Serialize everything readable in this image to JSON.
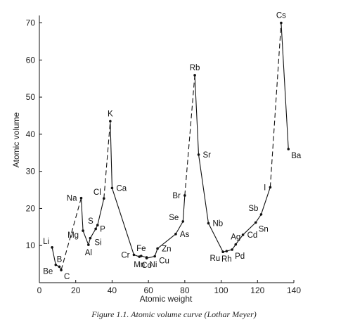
{
  "chart_data": {
    "type": "line",
    "title": "",
    "xlabel": "Atomic weight",
    "ylabel": "Atomic volume",
    "xlim": [
      0,
      140
    ],
    "ylim": [
      0,
      72
    ],
    "xticks": [
      0,
      20,
      40,
      60,
      80,
      100,
      120,
      140
    ],
    "yticks": [
      10,
      20,
      30,
      40,
      50,
      60,
      70
    ],
    "grid": false,
    "legend": "none",
    "line_color": "#111111",
    "points": [
      {
        "label": "Li",
        "x": 7,
        "y": 9.5,
        "label_pos": "above-left"
      },
      {
        "label": "Be",
        "x": 9,
        "y": 4.8,
        "label_pos": "below-left"
      },
      {
        "label": "B",
        "x": 11,
        "y": 4.3,
        "label_pos": "above"
      },
      {
        "label": "C",
        "x": 12,
        "y": 3.4,
        "label_pos": "below-right"
      },
      {
        "label": "Na",
        "x": 23,
        "y": 22.8,
        "label_pos": "left"
      },
      {
        "label": "Mg",
        "x": 24,
        "y": 14.0,
        "label_pos": "left-below"
      },
      {
        "label": "Al",
        "x": 27,
        "y": 10.2,
        "label_pos": "below"
      },
      {
        "label": "Si",
        "x": 28,
        "y": 12.0,
        "label_pos": "right-below"
      },
      {
        "label": "P",
        "x": 31,
        "y": 14.5,
        "label_pos": "right"
      },
      {
        "label": "S",
        "x": 32,
        "y": 15.5,
        "label_pos": "left-above"
      },
      {
        "label": "Cl",
        "x": 35.5,
        "y": 22.7,
        "label_pos": "above-left"
      },
      {
        "label": "K",
        "x": 39,
        "y": 43.5,
        "label_pos": "above"
      },
      {
        "label": "Ca",
        "x": 40,
        "y": 25.5,
        "label_pos": "right"
      },
      {
        "label": "Cr",
        "x": 52,
        "y": 7.5,
        "label_pos": "left"
      },
      {
        "label": "Mn",
        "x": 55,
        "y": 7.0,
        "label_pos": "below"
      },
      {
        "label": "Fe",
        "x": 56,
        "y": 7.2,
        "label_pos": "above"
      },
      {
        "label": "Co",
        "x": 59,
        "y": 6.8,
        "label_pos": "below"
      },
      {
        "label": "Ni",
        "x": 59,
        "y": 6.6,
        "label_pos": "below-right"
      },
      {
        "label": "Cu",
        "x": 63.5,
        "y": 7.1,
        "label_pos": "right-below"
      },
      {
        "label": "Zn",
        "x": 65,
        "y": 9.2,
        "label_pos": "right"
      },
      {
        "label": "As",
        "x": 75,
        "y": 13.1,
        "label_pos": "right"
      },
      {
        "label": "Se",
        "x": 79,
        "y": 16.5,
        "label_pos": "left-above"
      },
      {
        "label": "Br",
        "x": 80,
        "y": 23.5,
        "label_pos": "left"
      },
      {
        "label": "Rb",
        "x": 85.5,
        "y": 55.9,
        "label_pos": "above"
      },
      {
        "label": "Sr",
        "x": 87.6,
        "y": 34.5,
        "label_pos": "right"
      },
      {
        "label": "Nb",
        "x": 93,
        "y": 16.0,
        "label_pos": "right"
      },
      {
        "label": "Ru",
        "x": 101,
        "y": 8.3,
        "label_pos": "below-left"
      },
      {
        "label": "Rh",
        "x": 103,
        "y": 8.5,
        "label_pos": "below"
      },
      {
        "label": "Pd",
        "x": 106,
        "y": 8.9,
        "label_pos": "below-right"
      },
      {
        "label": "Ag",
        "x": 108,
        "y": 10.3,
        "label_pos": "above"
      },
      {
        "label": "Cd",
        "x": 112,
        "y": 12.9,
        "label_pos": "right"
      },
      {
        "label": "Sn",
        "x": 119,
        "y": 16.2,
        "label_pos": "below-right"
      },
      {
        "label": "Sb",
        "x": 122,
        "y": 18.4,
        "label_pos": "above-left"
      },
      {
        "label": "I",
        "x": 127,
        "y": 25.7,
        "label_pos": "left"
      },
      {
        "label": "Cs",
        "x": 133,
        "y": 70.0,
        "label_pos": "above"
      },
      {
        "label": "Ba",
        "x": 137,
        "y": 36.0,
        "label_pos": "below-right"
      }
    ],
    "segments": [
      {
        "from": "Li",
        "to": "Be",
        "style": "solid"
      },
      {
        "from": "Be",
        "to": "B",
        "style": "solid"
      },
      {
        "from": "B",
        "to": "C",
        "style": "solid"
      },
      {
        "from": "C",
        "to": "Na",
        "style": "dashed"
      },
      {
        "from": "Na",
        "to": "Mg",
        "style": "solid"
      },
      {
        "from": "Mg",
        "to": "Al",
        "style": "solid"
      },
      {
        "from": "Al",
        "to": "Si",
        "style": "solid"
      },
      {
        "from": "Si",
        "to": "P",
        "style": "solid"
      },
      {
        "from": "P",
        "to": "S",
        "style": "solid"
      },
      {
        "from": "S",
        "to": "Cl",
        "style": "solid"
      },
      {
        "from": "Cl",
        "to": "K",
        "style": "dashed"
      },
      {
        "from": "K",
        "to": "Ca",
        "style": "solid"
      },
      {
        "from": "Ca",
        "to": "Cr",
        "style": "solid"
      },
      {
        "from": "Cr",
        "to": "Mn",
        "style": "solid"
      },
      {
        "from": "Mn",
        "to": "Fe",
        "style": "solid"
      },
      {
        "from": "Fe",
        "to": "Co",
        "style": "solid"
      },
      {
        "from": "Co",
        "to": "Ni",
        "style": "solid"
      },
      {
        "from": "Ni",
        "to": "Cu",
        "style": "solid"
      },
      {
        "from": "Cu",
        "to": "Zn",
        "style": "solid"
      },
      {
        "from": "Zn",
        "to": "As",
        "style": "solid"
      },
      {
        "from": "As",
        "to": "Se",
        "style": "solid"
      },
      {
        "from": "Se",
        "to": "Br",
        "style": "solid"
      },
      {
        "from": "Br",
        "to": "Rb",
        "style": "dashed"
      },
      {
        "from": "Rb",
        "to": "Sr",
        "style": "solid"
      },
      {
        "from": "Sr",
        "to": "Nb",
        "style": "solid"
      },
      {
        "from": "Nb",
        "to": "Ru",
        "style": "solid"
      },
      {
        "from": "Ru",
        "to": "Rh",
        "style": "solid"
      },
      {
        "from": "Rh",
        "to": "Pd",
        "style": "solid"
      },
      {
        "from": "Pd",
        "to": "Ag",
        "style": "solid"
      },
      {
        "from": "Ag",
        "to": "Cd",
        "style": "solid"
      },
      {
        "from": "Cd",
        "to": "Sn",
        "style": "solid"
      },
      {
        "from": "Sn",
        "to": "Sb",
        "style": "solid"
      },
      {
        "from": "Sb",
        "to": "I",
        "style": "solid"
      },
      {
        "from": "I",
        "to": "Cs",
        "style": "dashed"
      },
      {
        "from": "Cs",
        "to": "Ba",
        "style": "solid"
      }
    ]
  },
  "caption": "Figure 1.1. Atomic volume curve (Lothar Meyer)"
}
